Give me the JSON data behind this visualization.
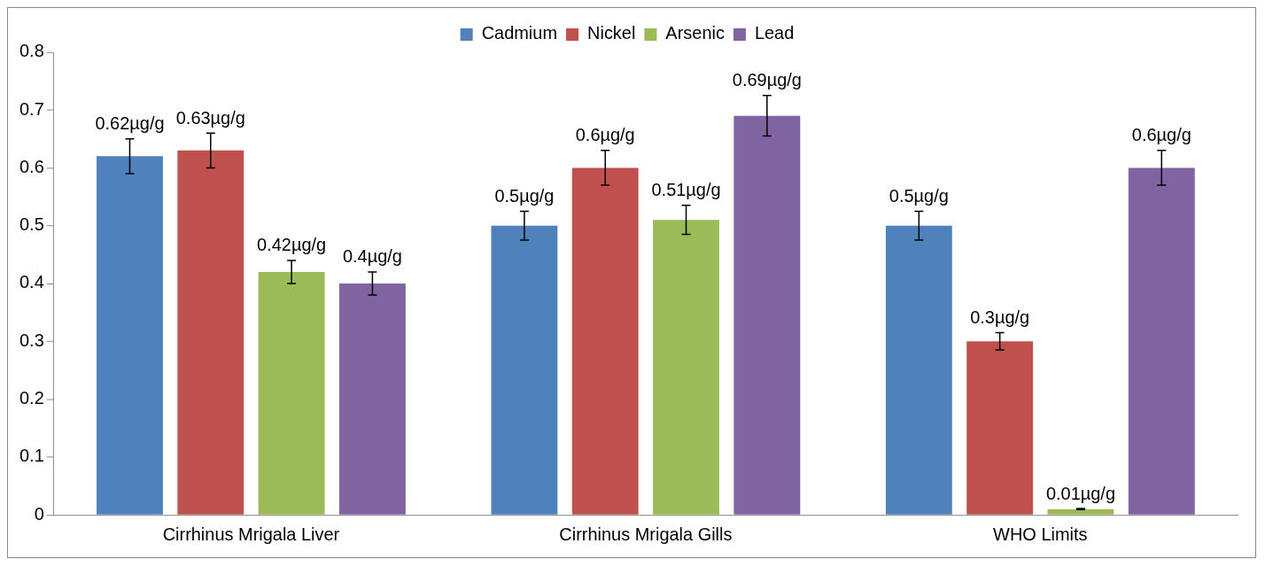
{
  "chart_data": {
    "type": "bar",
    "categories": [
      "Cirrhinus Mrigala Liver",
      "Cirrhinus Mrigala Gills",
      "WHO Limits"
    ],
    "series": [
      {
        "name": "Cadmium",
        "color": "#4f81bd",
        "values": [
          0.62,
          0.5,
          0.5
        ],
        "errors": [
          0.03,
          0.025,
          0.025
        ],
        "value_labels": [
          "0.62µg/g",
          "0.5µg/g",
          "0.5µg/g"
        ]
      },
      {
        "name": "Nickel",
        "color": "#c0504d",
        "values": [
          0.63,
          0.6,
          0.3
        ],
        "errors": [
          0.03,
          0.03,
          0.015
        ],
        "value_labels": [
          "0.63µg/g",
          "0.6µg/g",
          "0.3µg/g"
        ]
      },
      {
        "name": "Arsenic",
        "color": "#9bbb59",
        "values": [
          0.42,
          0.51,
          0.01
        ],
        "errors": [
          0.02,
          0.025,
          0.001
        ],
        "value_labels": [
          "0.42µg/g",
          "0.51µg/g",
          "0.01µg/g"
        ]
      },
      {
        "name": "Lead",
        "color": "#8064a2",
        "values": [
          0.4,
          0.69,
          0.6
        ],
        "errors": [
          0.02,
          0.035,
          0.03
        ],
        "value_labels": [
          "0.4µg/g",
          "0.69µg/g",
          "0.6µg/g"
        ]
      }
    ],
    "ylim": [
      0,
      0.8
    ],
    "yticks": [
      0,
      0.1,
      0.2,
      0.3,
      0.4,
      0.5,
      0.6,
      0.7,
      0.8
    ],
    "grid": false,
    "legend": "top"
  }
}
